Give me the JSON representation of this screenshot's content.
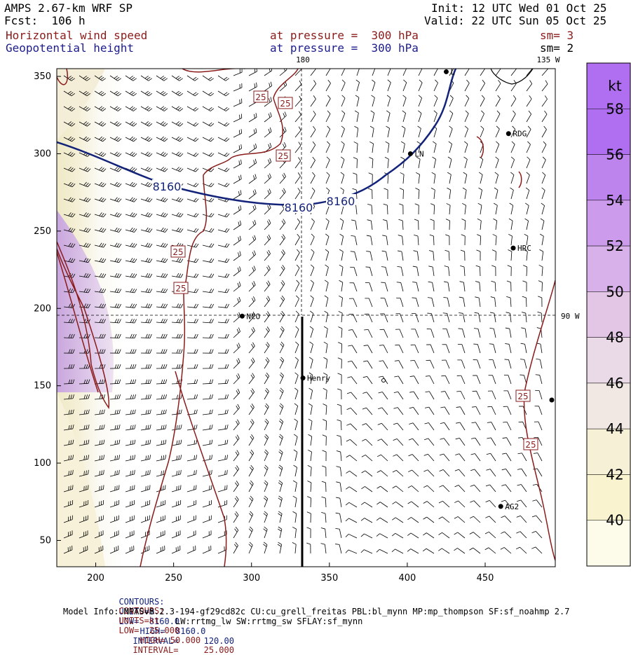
{
  "header": {
    "model": "AMPS 2.67-km WRF SP",
    "fcst": "Fcst:  106 h",
    "init": "Init: 12 UTC Wed 01 Oct 25",
    "valid": "Valid: 22 UTC Sun 05 Oct 25",
    "field1": "Horizontal wind speed",
    "field2": "Geopotential height",
    "level1": "at pressure =  300 hPa",
    "level2": "at pressure =  300 hPa",
    "sm1": "sm= 3",
    "sm2": "sm= 2"
  },
  "chart_data": {
    "type": "heatmap",
    "x_ticks": [
      200,
      250,
      300,
      350,
      400,
      450
    ],
    "y_ticks": [
      50,
      100,
      150,
      200,
      250,
      300,
      350
    ],
    "xlim": [
      175,
      495
    ],
    "ylim": [
      33,
      355
    ],
    "colorbar": {
      "unit": "kt",
      "levels": [
        40,
        42,
        44,
        46,
        48,
        50,
        52,
        54,
        56,
        58
      ],
      "colors": [
        "#fdfbe9",
        "#f9f3cf",
        "#f6f0d6",
        "#f1e8e3",
        "#ead9e6",
        "#e3c5e6",
        "#d8b1ea",
        "#cc9bec",
        "#bd84ee",
        "#b06ef0"
      ]
    },
    "contours": [
      {
        "field": "Geopotential height",
        "units": "m",
        "value": 8160,
        "label": "8160"
      },
      {
        "field": "Horizontal wind speed",
        "units": "kt",
        "value": 25,
        "label": "25"
      }
    ],
    "stations": [
      {
        "name": "RDG",
        "x": 465,
        "y": 313
      },
      {
        "name": "LN",
        "x": 402,
        "y": 300
      },
      {
        "name": "HRC",
        "x": 468,
        "y": 239
      },
      {
        "name": "NCO",
        "x": 294,
        "y": 195
      },
      {
        "name": "Henry",
        "x": 333,
        "y": 155
      },
      {
        "name": "AG2",
        "x": 460,
        "y": 72
      },
      {
        "name": "L",
        "x": 425,
        "y": 353
      }
    ],
    "grid_labels": {
      "lon180": "180",
      "lon135": "135 W",
      "lon90": "90 W"
    }
  },
  "footer": {
    "c1_label": "CONTOURS:",
    "c1_units": "UNITS=m",
    "c1_low": "LOW=  8160.0",
    "c1_high": "HIGH=  8160.0",
    "c1_int": "INTERVAL=     120.00",
    "c2_label": "CONTOURS:",
    "c2_units": "UNITS=kt",
    "c2_low": "LOW=  25.000",
    "c2_high": "HIGH= 50.000",
    "c2_int": "INTERVAL=     25.000",
    "model_info": "Model Info: MPASv8.2.3-194-gf29cd82c CU:cu_grell_freitas PBL:bl_mynn MP:mp_thompson SF:sf_noahmp 2.7",
    "model_info2": "LW:rrtmg_lw SW:rrtmg_sw SFLAY:sf_mynn"
  }
}
